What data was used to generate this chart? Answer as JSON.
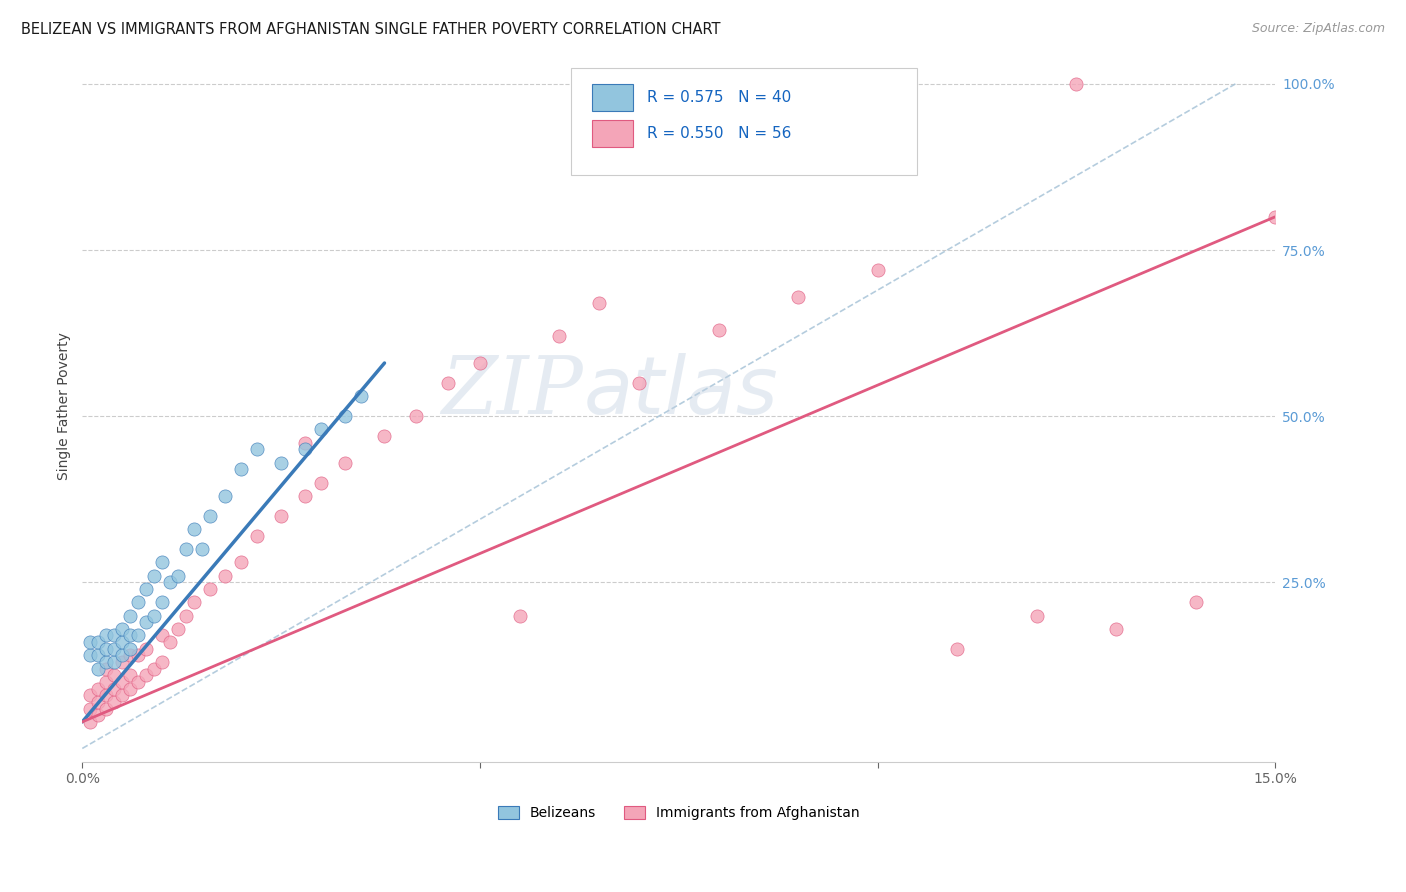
{
  "title": "BELIZEAN VS IMMIGRANTS FROM AFGHANISTAN SINGLE FATHER POVERTY CORRELATION CHART",
  "source": "Source: ZipAtlas.com",
  "ylabel": "Single Father Poverty",
  "legend_label1": "Belizeans",
  "legend_label2": "Immigrants from Afghanistan",
  "color_blue": "#92c5de",
  "color_blue_dark": "#3a7ab8",
  "color_pink": "#f4a5b8",
  "color_pink_dark": "#e05a80",
  "color_diag": "#a8c4d8",
  "watermark_zip": "ZIP",
  "watermark_atlas": "atlas",
  "xlim": [
    0.0,
    0.15
  ],
  "ylim": [
    -0.02,
    1.05
  ],
  "blue_line_x": [
    0.0,
    0.038
  ],
  "blue_line_y": [
    0.04,
    0.58
  ],
  "pink_line_x": [
    0.0,
    0.15
  ],
  "pink_line_y": [
    0.04,
    0.8
  ],
  "diag_line_x": [
    0.0,
    0.145
  ],
  "diag_line_y": [
    0.0,
    1.0
  ],
  "blue_x": [
    0.001,
    0.001,
    0.002,
    0.002,
    0.002,
    0.003,
    0.003,
    0.003,
    0.004,
    0.004,
    0.004,
    0.005,
    0.005,
    0.005,
    0.006,
    0.006,
    0.006,
    0.007,
    0.007,
    0.008,
    0.008,
    0.009,
    0.009,
    0.01,
    0.01,
    0.011,
    0.012,
    0.013,
    0.014,
    0.015,
    0.016,
    0.018,
    0.02,
    0.022,
    0.025,
    0.028,
    0.03,
    0.033,
    0.035,
    0.065
  ],
  "blue_y": [
    0.14,
    0.16,
    0.12,
    0.14,
    0.16,
    0.13,
    0.15,
    0.17,
    0.13,
    0.15,
    0.17,
    0.14,
    0.16,
    0.18,
    0.15,
    0.17,
    0.2,
    0.17,
    0.22,
    0.19,
    0.24,
    0.2,
    0.26,
    0.22,
    0.28,
    0.25,
    0.26,
    0.3,
    0.33,
    0.3,
    0.35,
    0.38,
    0.42,
    0.45,
    0.43,
    0.45,
    0.48,
    0.5,
    0.53,
    1.0
  ],
  "pink_x": [
    0.001,
    0.001,
    0.001,
    0.002,
    0.002,
    0.002,
    0.003,
    0.003,
    0.003,
    0.003,
    0.004,
    0.004,
    0.004,
    0.005,
    0.005,
    0.005,
    0.006,
    0.006,
    0.006,
    0.007,
    0.007,
    0.008,
    0.008,
    0.009,
    0.01,
    0.01,
    0.011,
    0.012,
    0.013,
    0.014,
    0.016,
    0.018,
    0.02,
    0.022,
    0.025,
    0.028,
    0.03,
    0.033,
    0.038,
    0.042,
    0.046,
    0.05,
    0.06,
    0.065,
    0.07,
    0.08,
    0.09,
    0.1,
    0.11,
    0.12,
    0.13,
    0.14,
    0.15,
    0.028,
    0.055,
    0.125
  ],
  "pink_y": [
    0.04,
    0.06,
    0.08,
    0.05,
    0.07,
    0.09,
    0.06,
    0.08,
    0.1,
    0.12,
    0.07,
    0.09,
    0.11,
    0.08,
    0.1,
    0.13,
    0.09,
    0.11,
    0.14,
    0.1,
    0.14,
    0.11,
    0.15,
    0.12,
    0.13,
    0.17,
    0.16,
    0.18,
    0.2,
    0.22,
    0.24,
    0.26,
    0.28,
    0.32,
    0.35,
    0.38,
    0.4,
    0.43,
    0.47,
    0.5,
    0.55,
    0.58,
    0.62,
    0.67,
    0.55,
    0.63,
    0.68,
    0.72,
    0.15,
    0.2,
    0.18,
    0.22,
    0.8,
    0.46,
    0.2,
    1.0
  ],
  "title_fontsize": 10.5,
  "source_fontsize": 9,
  "axis_fontsize": 10,
  "legend_fontsize": 11
}
